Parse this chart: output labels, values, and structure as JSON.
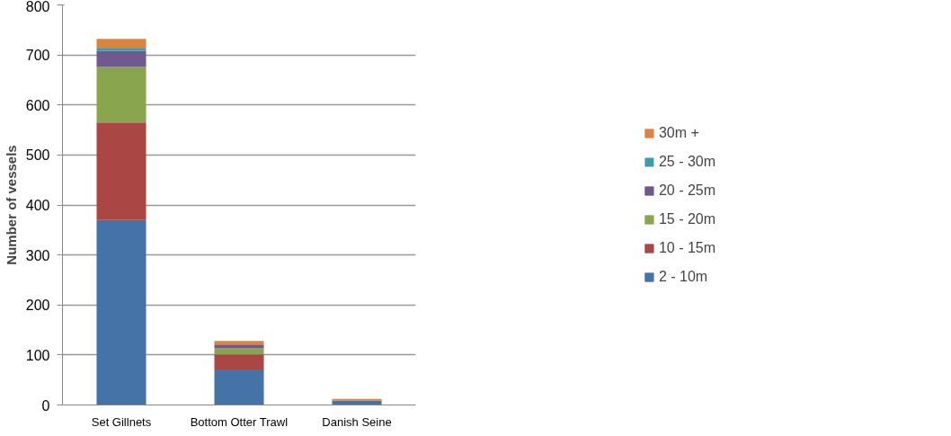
{
  "chart_data": {
    "type": "bar",
    "stacked": true,
    "ylabel": "Number of vessels",
    "categories": [
      "Set Gillnets",
      "Bottom Otter Trawl",
      "Danish Seine"
    ],
    "series": [
      {
        "name": "2 - 10m",
        "color": "#4572a7",
        "values": [
          370,
          71,
          8
        ]
      },
      {
        "name": "10 - 15m",
        "color": "#aa4643",
        "values": [
          195,
          30,
          1
        ]
      },
      {
        "name": "15 - 20m",
        "color": "#89a54e",
        "values": [
          111,
          13,
          0
        ]
      },
      {
        "name": "20 - 25m",
        "color": "#71588f",
        "values": [
          32,
          7,
          0
        ]
      },
      {
        "name": "25 - 30m",
        "color": "#4198af",
        "values": [
          5,
          null,
          0
        ]
      },
      {
        "name": "30m +",
        "color": "#db843d",
        "values": [
          19,
          7,
          3
        ]
      }
    ],
    "ylim": [
      0,
      800
    ],
    "yticks": [
      0,
      100,
      200,
      300,
      400,
      500,
      600,
      700,
      800
    ],
    "grid": "y",
    "legend": "right"
  }
}
